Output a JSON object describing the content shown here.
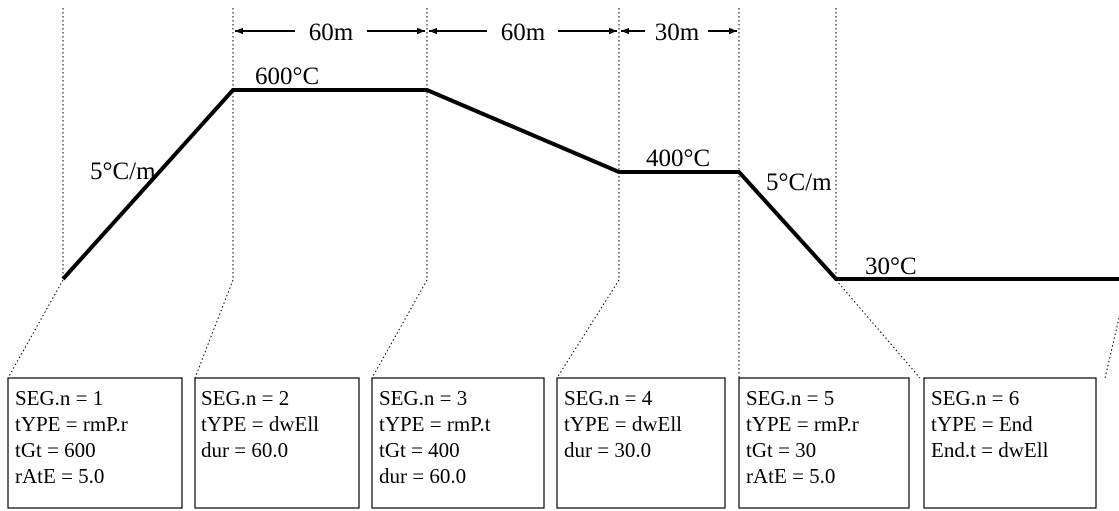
{
  "diagram": {
    "temperature_labels": {
      "hold_600": "600°C",
      "hold_400": "400°C",
      "hold_30": "30°C"
    },
    "rate_labels": {
      "ramp_up": "5°C/m",
      "ramp_down": "5°C/m"
    },
    "durations": {
      "first": "60m",
      "second": "60m",
      "third": "30m"
    },
    "segments": [
      {
        "lines": [
          "SEG.n = 1",
          "tYPE = rmP.r",
          "tGt = 600",
          "rAtE = 5.0"
        ]
      },
      {
        "lines": [
          "SEG.n = 2",
          "tYPE = dwEll",
          "dur = 60.0"
        ]
      },
      {
        "lines": [
          "SEG.n = 3",
          "tYPE = rmP.t",
          "tGt = 400",
          "dur = 60.0"
        ]
      },
      {
        "lines": [
          "SEG.n = 4",
          "tYPE = dwEll",
          "dur = 30.0"
        ]
      },
      {
        "lines": [
          "SEG.n = 5",
          "tYPE = rmP.r",
          "tGt = 30",
          "rAtE = 5.0"
        ]
      },
      {
        "lines": [
          "SEG.n = 6",
          "tYPE = End",
          "End.t = dwEll"
        ]
      }
    ]
  }
}
